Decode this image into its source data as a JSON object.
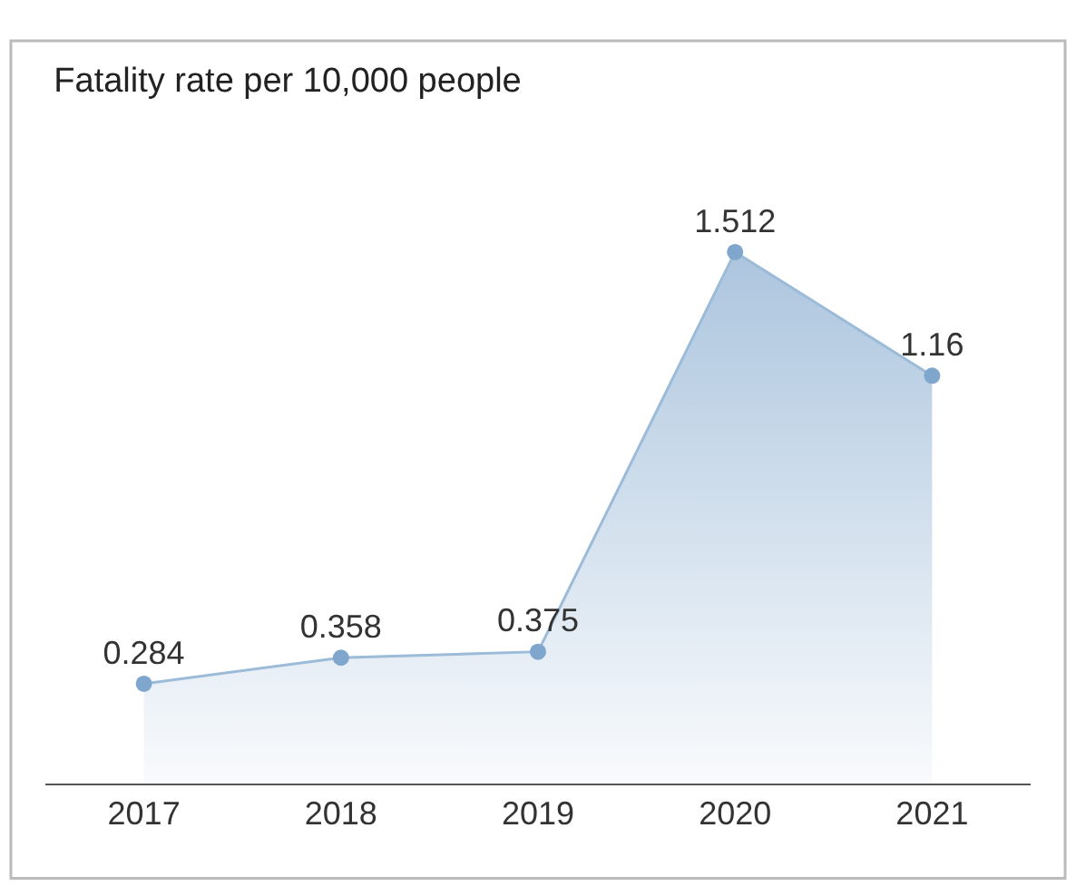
{
  "chart_data": {
    "type": "area",
    "title": "Fatality rate per 10,000 people",
    "categories": [
      "2017",
      "2018",
      "2019",
      "2020",
      "2021"
    ],
    "series": [
      {
        "color": "#7fa6cc",
        "values": [
          0.284,
          0.358,
          0.375,
          1.512,
          1.16
        ]
      }
    ],
    "data_labels": true,
    "marker": "circle",
    "legend": false
  }
}
